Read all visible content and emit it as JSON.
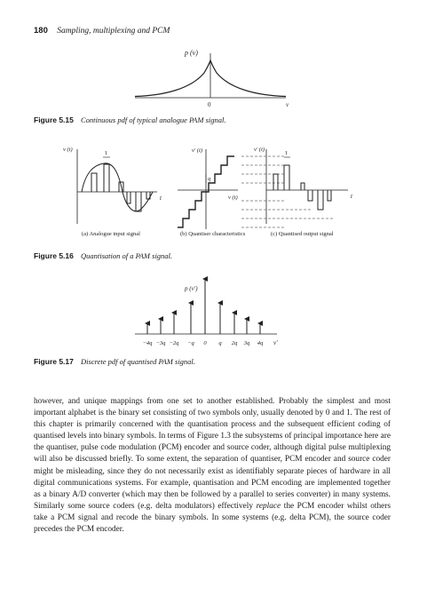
{
  "header": {
    "page_number": "180",
    "running_title": "Sampling, multiplexing and PCM"
  },
  "fig515": {
    "label": "Figure 5.15",
    "caption": "Continuous pdf of typical analogue PAM signal.",
    "y_label": "p (v)",
    "origin_label": "0",
    "x_label": "v"
  },
  "fig516": {
    "label": "Figure 5.16",
    "caption": "Quantisation of a PAM signal.",
    "a": {
      "y_label": "v (t)",
      "tau": "τ",
      "t": "t",
      "sub": "(a) Analogue input signal"
    },
    "b": {
      "y_label": "v′ (t)",
      "q": "q",
      "x_label": "v (t)",
      "sub": "(b) Quantiser characteristics"
    },
    "c": {
      "y_label": "v′ (t)",
      "tau": "τ",
      "t": "t",
      "sub": "(c) Quantised output signal"
    }
  },
  "fig517": {
    "label": "Figure 5.17",
    "caption": "Discrete pdf of quantised PAM signal.",
    "y_label": "p (v′)",
    "ticks": [
      "−4q",
      "−3q",
      "−2q",
      "−q",
      "0",
      "q",
      "2q",
      "3q",
      "4q"
    ],
    "x_label": "v′"
  },
  "body": {
    "p1": "however, and unique mappings from one set to another established. Probably the simplest and most important alphabet is the binary set consisting of two symbols only, usually denoted by 0 and 1. The rest of this chapter is primarily concerned with the quantisation process and the subsequent efficient coding of quantised levels into binary symbols. In terms of Figure 1.3 the subsystems of principal importance here are the quantiser, pulse code modulation (PCM) encoder and source coder, although digital pulse multiplexing will also be discussed briefly. To some extent, the separation of quantiser, PCM encoder and source coder might be misleading, since they do not necessarily exist as identifiably separate pieces of hardware in all digital communications systems. For example, quantisation and PCM encoding are implemented together as a binary A/D converter (which may then be followed by a parallel to series converter) in many systems. Similarly some source coders (e.g. delta modulators) effectively",
    "em": "replace",
    "p2": "the PCM encoder whilst others take a PCM signal and recode the binary symbols. In some systems (e.g. delta PCM), the source coder precedes the PCM encoder."
  }
}
